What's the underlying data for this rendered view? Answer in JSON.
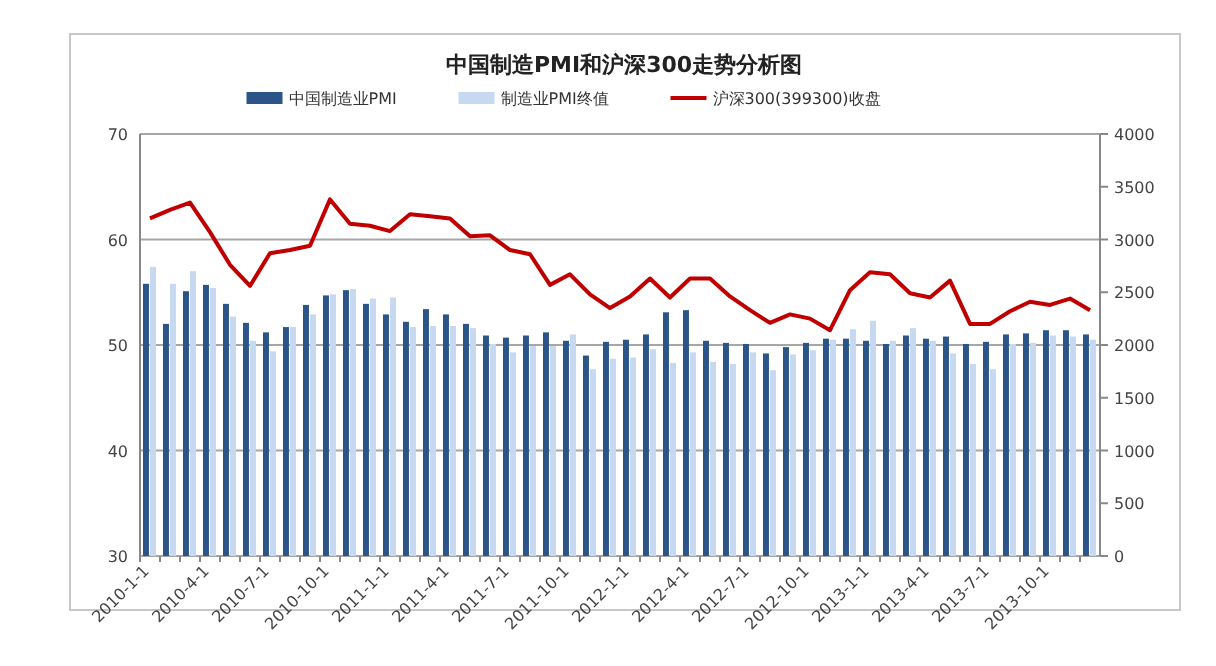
{
  "chart_data": {
    "type": "bar",
    "title": "中国制造PMI和沪深300走势分析图",
    "categories": [
      "2010-1-1",
      null,
      null,
      "2010-4-1",
      null,
      null,
      "2010-7-1",
      null,
      null,
      "2010-10-1",
      null,
      null,
      "2011-1-1",
      null,
      null,
      "2011-4-1",
      null,
      null,
      "2011-7-1",
      null,
      null,
      "2011-10-1",
      null,
      null,
      "2012-1-1",
      null,
      null,
      "2012-4-1",
      null,
      null,
      "2012-7-1",
      null,
      null,
      "2012-10-1",
      null,
      null,
      "2013-1-1",
      null,
      null,
      "2013-4-1",
      null,
      null,
      "2013-7-1",
      null,
      null,
      "2013-10-1",
      null,
      null
    ],
    "series": [
      {
        "name": "中国制造业PMI",
        "color": "#2b5589",
        "values": [
          55.8,
          52.0,
          55.1,
          55.7,
          53.9,
          52.1,
          51.2,
          51.7,
          53.8,
          54.7,
          55.2,
          53.9,
          52.9,
          52.2,
          53.4,
          52.9,
          52.0,
          50.9,
          50.7,
          50.9,
          51.2,
          50.4,
          49.0,
          50.3,
          50.5,
          51.0,
          53.1,
          53.3,
          50.4,
          50.2,
          50.1,
          49.2,
          49.8,
          50.2,
          50.6,
          50.6,
          50.4,
          50.1,
          50.9,
          50.6,
          50.8,
          50.1,
          50.3,
          51.0,
          51.1,
          51.4,
          51.4,
          51.0
        ]
      },
      {
        "name": "制造业PMI终值",
        "color": "#c6d9f1",
        "values": [
          57.4,
          55.8,
          57.0,
          55.4,
          52.7,
          50.4,
          49.4,
          51.7,
          52.9,
          54.8,
          55.3,
          54.4,
          54.5,
          51.7,
          51.8,
          51.8,
          51.6,
          50.1,
          49.3,
          49.9,
          49.9,
          51.0,
          47.7,
          48.7,
          48.8,
          49.6,
          48.3,
          49.3,
          48.4,
          48.2,
          49.3,
          47.6,
          49.1,
          49.5,
          50.5,
          51.5,
          52.3,
          50.4,
          51.6,
          50.4,
          49.2,
          48.2,
          47.7,
          50.1,
          50.2,
          50.9,
          50.8,
          50.5
        ]
      },
      {
        "name": "沪深300(399300)收盘",
        "color": "#c00000",
        "type": "line",
        "axis": "y2",
        "values": [
          3200,
          3280,
          3350,
          3070,
          2760,
          2560,
          2870,
          2900,
          2940,
          3380,
          3150,
          3130,
          3080,
          3240,
          3220,
          3200,
          3030,
          3040,
          2900,
          2860,
          2570,
          2670,
          2480,
          2350,
          2460,
          2630,
          2450,
          2630,
          2630,
          2460,
          2330,
          2210,
          2290,
          2250,
          2140,
          2520,
          2690,
          2670,
          2490,
          2450,
          2610,
          2200,
          2200,
          2320,
          2410,
          2380,
          2440,
          2330
        ]
      }
    ],
    "ylim": [
      30,
      70
    ],
    "yticks": [
      30,
      40,
      50,
      60,
      70
    ],
    "y2lim": [
      0,
      4000
    ],
    "y2ticks": [
      0,
      500,
      1000,
      1500,
      2000,
      2500,
      3000,
      3500,
      4000
    ],
    "grid": "y",
    "legend": "top"
  }
}
